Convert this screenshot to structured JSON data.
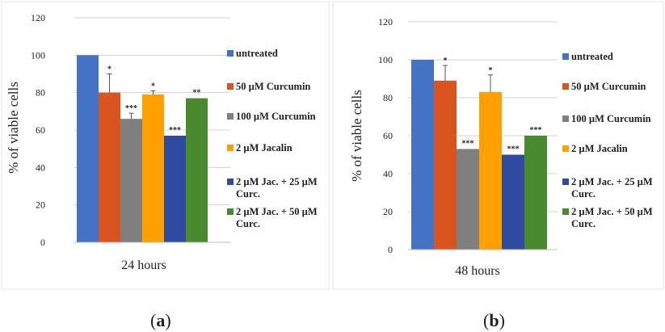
{
  "colors": {
    "untreated": "#4472C4",
    "curcumin50": "#D9541E",
    "curcumin100": "#7F7F7F",
    "jacalin2": "#FFA000",
    "jac_curc25": "#2F4BA0",
    "jac_curc50": "#4A8A2E"
  },
  "chart_data": [
    {
      "type": "bar",
      "panel_label": "a",
      "xlabel": "24 hours",
      "ylabel": "% of viable cells",
      "ylim": [
        0,
        120
      ],
      "yticks": [
        "0",
        "20",
        "40",
        "60",
        "80",
        "100",
        "120"
      ],
      "grid": true,
      "legend_position": "right",
      "series": [
        {
          "name": "untreated",
          "value": 100,
          "error": 0,
          "sig": ""
        },
        {
          "name": "50 µM Curcumin",
          "value": 80,
          "error": 10,
          "sig": "*"
        },
        {
          "name": "100 µM Curcumin",
          "value": 66,
          "error": 3,
          "sig": "***"
        },
        {
          "name": "2 µM Jacalin",
          "value": 79,
          "error": 2,
          "sig": "*"
        },
        {
          "name": "2 µM Jac. + 25 µM Curc.",
          "value": 57,
          "error": 0,
          "sig": "***"
        },
        {
          "name": "2 µM Jac. + 50 µM Curc.",
          "value": 77,
          "error": 0,
          "sig": "**"
        }
      ]
    },
    {
      "type": "bar",
      "panel_label": "b",
      "xlabel": "48 hours",
      "ylabel": "% of viable cells",
      "ylim": [
        0,
        120
      ],
      "yticks": [
        "0",
        "20",
        "40",
        "60",
        "80",
        "100",
        "120"
      ],
      "grid": true,
      "legend_position": "right",
      "series": [
        {
          "name": "untreated",
          "value": 100,
          "error": 0,
          "sig": ""
        },
        {
          "name": "50 µM Curcumin",
          "value": 89,
          "error": 8,
          "sig": "*"
        },
        {
          "name": "100 µM Curcumin",
          "value": 53,
          "error": 0,
          "sig": "***"
        },
        {
          "name": "2 µM Jacalin",
          "value": 83,
          "error": 9,
          "sig": "*"
        },
        {
          "name": "2 µM Jac. + 25 µM Curc.",
          "value": 50,
          "error": 0,
          "sig": "***"
        },
        {
          "name": "2 µM Jac. + 50 µM Curc.",
          "value": 60,
          "error": 0,
          "sig": "***"
        }
      ]
    }
  ]
}
